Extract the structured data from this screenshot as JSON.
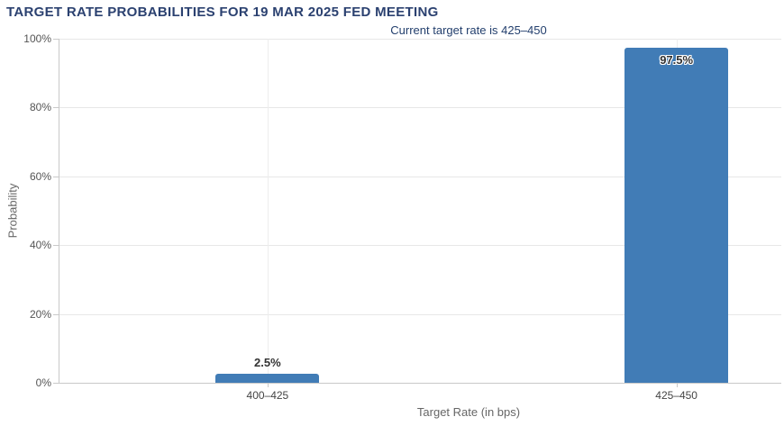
{
  "chart_data": {
    "type": "bar",
    "title": "TARGET RATE PROBABILITIES FOR 19 MAR 2025 FED MEETING",
    "subtitle": "Current target rate is 425–450",
    "categories": [
      "400–425",
      "425–450"
    ],
    "values": [
      2.5,
      97.5
    ],
    "data_labels": [
      "2.5%",
      "97.5%"
    ],
    "xlabel": "Target Rate (in bps)",
    "ylabel": "Probability",
    "ylim": [
      0,
      100
    ],
    "ytick_values": [
      0,
      20,
      40,
      60,
      80,
      100
    ],
    "ytick_labels": [
      "0%",
      "20%",
      "40%",
      "60%",
      "80%",
      "100%"
    ],
    "grid": true,
    "legend": false,
    "colors": {
      "bar": "#417cb6",
      "title": "#2b4170",
      "subtitle": "#24406e",
      "axis_line": "#c9c9c9",
      "gridline": "#e7e7e7",
      "tick_label": "#555555",
      "axis_title": "#666666",
      "data_label": "#333333"
    }
  }
}
